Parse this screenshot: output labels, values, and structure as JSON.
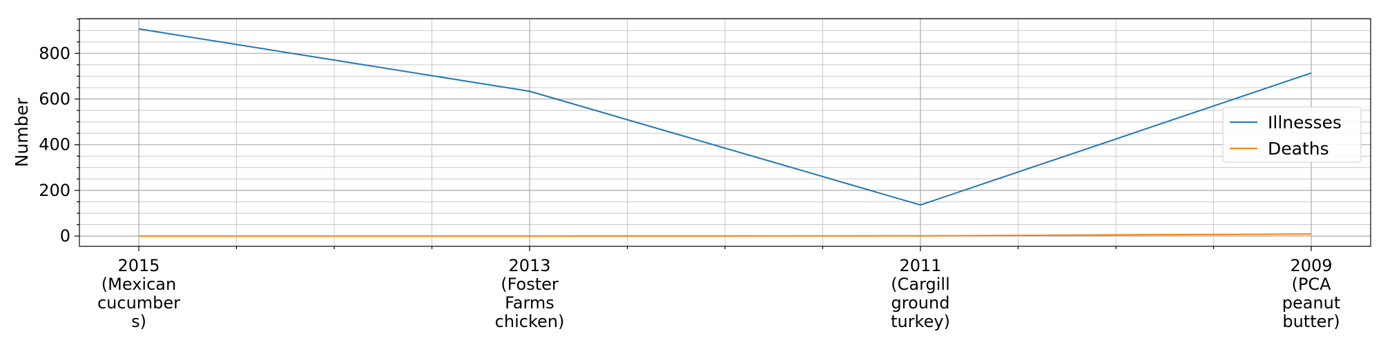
{
  "chart_data": {
    "type": "line",
    "title": "",
    "xlabel": "",
    "ylabel": "Number",
    "categories": [
      "2015 (Mexican cucumbers)",
      "2013 (Foster Farms chicken)",
      "2011 (Cargill ground turkey)",
      "2009 (PCA peanut butter)"
    ],
    "category_lines": [
      [
        "2015",
        "(Mexican",
        "cucumber",
        "s)"
      ],
      [
        "2013",
        "(Foster",
        "Farms",
        "chicken)"
      ],
      [
        "2011",
        "(Cargill",
        "ground",
        "turkey)"
      ],
      [
        "2009",
        "(PCA",
        "peanut",
        "butter)"
      ]
    ],
    "series": [
      {
        "name": "Illnesses",
        "color": "#1f77b4",
        "values": [
          907,
          634,
          136,
          714
        ]
      },
      {
        "name": "Deaths",
        "color": "#ff7f0e",
        "values": [
          0,
          0,
          1,
          9
        ]
      }
    ],
    "ylim": [
      -45,
      952
    ],
    "yticks": [
      0,
      200,
      400,
      600,
      800
    ],
    "y_minor_step": 50,
    "x_minor_per_interval": 3,
    "grid": true,
    "legend_position": "center-right"
  }
}
